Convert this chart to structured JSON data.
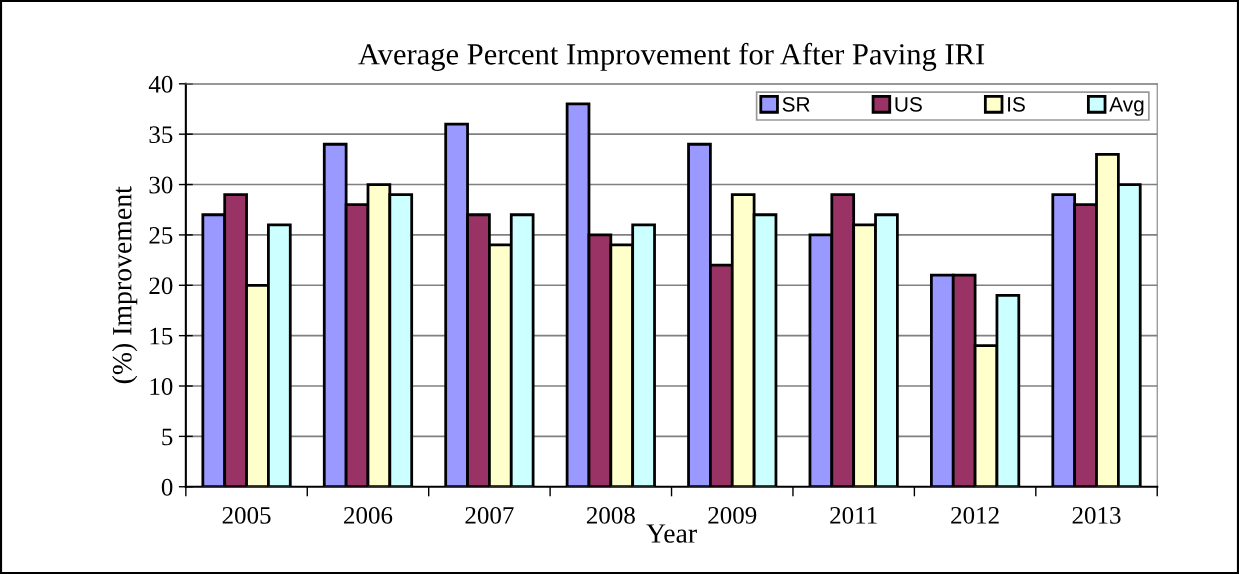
{
  "chart_data": {
    "type": "bar",
    "title": "Average Percent Improvement for After Paving IRI",
    "xlabel": "Year",
    "ylabel": "(%) Improvement",
    "categories": [
      "2005",
      "2006",
      "2007",
      "2008",
      "2009",
      "2011",
      "2012",
      "2013"
    ],
    "series": [
      {
        "name": "SR",
        "color": "#9999ff",
        "values": [
          27,
          34,
          36,
          38,
          34,
          25,
          21,
          29
        ]
      },
      {
        "name": "US",
        "color": "#993366",
        "values": [
          29,
          28,
          27,
          25,
          22,
          29,
          21,
          28
        ]
      },
      {
        "name": "IS",
        "color": "#ffffcc",
        "values": [
          20,
          30,
          24,
          24,
          29,
          26,
          14,
          33
        ]
      },
      {
        "name": "Avg",
        "color": "#ccffff",
        "values": [
          26,
          29,
          27,
          26,
          27,
          27,
          19,
          30
        ]
      }
    ],
    "ylim": [
      0,
      40
    ],
    "yticks": [
      0,
      5,
      10,
      15,
      20,
      25,
      30,
      35,
      40
    ],
    "grid": "y",
    "legend": "top right"
  }
}
